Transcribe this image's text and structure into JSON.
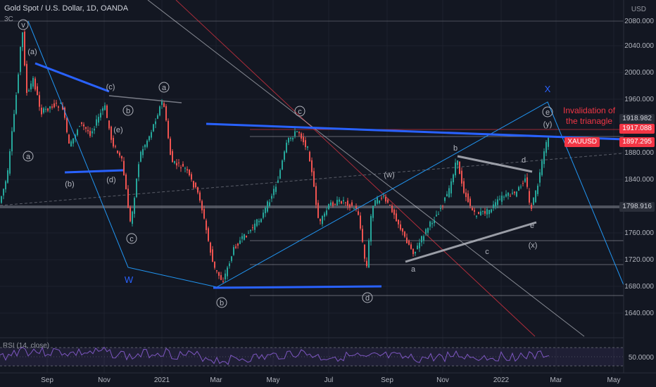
{
  "header": {
    "symbol_title": "Gold Spot / U.S. Dollar, 1D, OANDA",
    "timeframe_tag": "3C",
    "currency": "USD"
  },
  "rsi": {
    "label": "RSI (14, close)",
    "level": "50.0000"
  },
  "price_axis": {
    "ticks": [
      "2080.000",
      "2040.000",
      "2000.000",
      "1960.000",
      "1880.000",
      "1840.000",
      "1760.000",
      "1720.000",
      "1680.000",
      "1640.000"
    ]
  },
  "time_axis": {
    "ticks": [
      "Sep",
      "Nov",
      "2021",
      "Mar",
      "May",
      "Jul",
      "Sep",
      "Nov",
      "2022",
      "Mar",
      "May"
    ]
  },
  "price_tags": {
    "tag1": "1918.982",
    "tag2": "1917.088",
    "current_symbol": "XAUUSD",
    "current_price": "1897.295",
    "tag3": "1798.916"
  },
  "annotation": {
    "line1": "Invalidation of",
    "line2": "the trianagle"
  },
  "wave_labels": {
    "v": "v",
    "a_paren": "(a)",
    "c_paren": "(c)",
    "b": "b",
    "b_paren": "(b)",
    "d_paren": "(d)",
    "e_paren": "(e)",
    "a": "a",
    "c": "c",
    "W": "W",
    "b_circ": "b",
    "c_circ": "c",
    "w_paren": "(w)",
    "d_circ": "d",
    "a_lower": "a",
    "c_lower": "c",
    "b_lower": "b",
    "d_lower": "d",
    "e_lower": "e",
    "x_paren": "(x)",
    "e_circ": "e",
    "y_paren": "(y)",
    "X": "X"
  },
  "colors": {
    "background": "#131722",
    "up_candle": "#26a69a",
    "down_candle": "#ef5350",
    "trend_blue": "#2962ff",
    "channel": "#2196f3",
    "grey_line": "#b2b5be",
    "red_tag": "#f23645",
    "current_tag": "#f23645"
  }
}
